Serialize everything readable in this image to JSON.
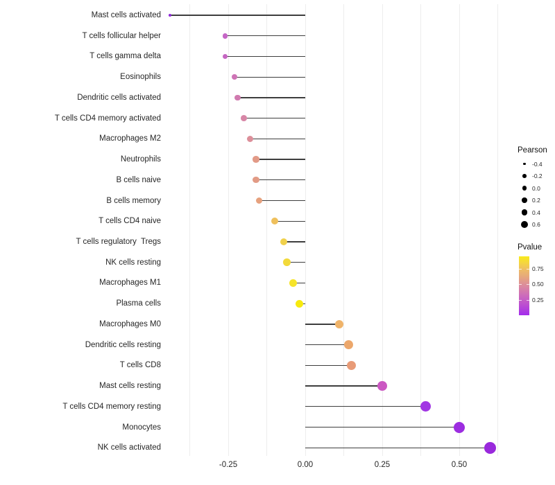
{
  "chart_data": {
    "type": "lollipop",
    "title": "",
    "xlabel": "",
    "ylabel": "",
    "orientation": "horizontal",
    "baseline_value": 0,
    "categories": [
      "Mast cells activated",
      "T cells follicular helper",
      "T cells gamma delta",
      "Eosinophils",
      "Dendritic cells activated",
      "T cells CD4 memory activated",
      "Macrophages M2",
      "Neutrophils",
      "B cells naive",
      "B cells memory",
      "T cells CD4 naive",
      "T cells regulatory  Tregs",
      "NK cells resting",
      "Macrophages M1",
      "Plasma cells",
      "Macrophages M0",
      "Dendritic cells resting",
      "T cells CD8",
      "Mast cells resting",
      "T cells CD4 memory resting",
      "Monocytes",
      "NK cells activated"
    ],
    "series": [
      {
        "name": "Pearson",
        "values": [
          -0.44,
          -0.26,
          -0.26,
          -0.23,
          -0.22,
          -0.2,
          -0.18,
          -0.16,
          -0.16,
          -0.15,
          -0.1,
          -0.07,
          -0.06,
          -0.04,
          -0.02,
          0.11,
          0.14,
          0.15,
          0.25,
          0.39,
          0.5,
          0.6
        ]
      }
    ],
    "point_colors": [
      "#8E28D8",
      "#C566C6",
      "#C566C2",
      "#CE74B6",
      "#D07AAF",
      "#D786A6",
      "#DC8F9A",
      "#E29A87",
      "#E29B85",
      "#E6A17E",
      "#EFC05C",
      "#F0D14B",
      "#F2D93B",
      "#F6E42A",
      "#F7EA0E",
      "#EFB369",
      "#ECA76B",
      "#E89B77",
      "#CB58C2",
      "#A136E3",
      "#9C2DE0",
      "#9929DC"
    ],
    "x_axis": {
      "ticks": [
        {
          "label": "-0.25",
          "value": -0.25
        },
        {
          "label": "0.00",
          "value": 0.0
        },
        {
          "label": "0.25",
          "value": 0.25
        },
        {
          "label": "0.50",
          "value": 0.5
        }
      ],
      "gridline_values": [
        -0.375,
        -0.25,
        -0.125,
        0,
        0.125,
        0.25,
        0.375,
        0.5,
        0.625
      ],
      "xlim": [
        -0.49,
        0.65
      ]
    },
    "size_legend": {
      "title": "Pearson",
      "domain": [
        -0.44,
        0.6
      ],
      "items": [
        {
          "label": "-0.4",
          "value": -0.4,
          "r": 1.8
        },
        {
          "label": "-0.2",
          "value": -0.2,
          "r": 2.8
        },
        {
          "label": "0.0",
          "value": 0.0,
          "r": 3.3
        },
        {
          "label": "0.2",
          "value": 0.2,
          "r": 3.8
        },
        {
          "label": "0.4",
          "value": 0.4,
          "r": 4.3
        },
        {
          "label": "0.6",
          "value": 0.6,
          "r": 5.0
        }
      ]
    },
    "color_legend": {
      "title": "Pvalue",
      "domain": [
        0,
        0.95
      ],
      "tick_values": [
        0.75,
        0.5,
        0.25
      ],
      "tick_labels": [
        "0.75",
        "0.50",
        "0.25"
      ],
      "gradient_stops": [
        {
          "pos": 0.0,
          "color": "#A32CEC"
        },
        {
          "pos": 0.18,
          "color": "#BC4FD0"
        },
        {
          "pos": 0.34,
          "color": "#CD6CBA"
        },
        {
          "pos": 0.5,
          "color": "#DB8A9E"
        },
        {
          "pos": 0.64,
          "color": "#E5A57F"
        },
        {
          "pos": 0.78,
          "color": "#EEBE64"
        },
        {
          "pos": 0.9,
          "color": "#F5D83C"
        },
        {
          "pos": 1.0,
          "color": "#F9EA1C"
        }
      ]
    },
    "style": {
      "stem_color": "#3D3D3D",
      "gridline_color": "#EDEDED",
      "background": "#FFFFFF",
      "legend_dot_color": "#000000"
    }
  }
}
